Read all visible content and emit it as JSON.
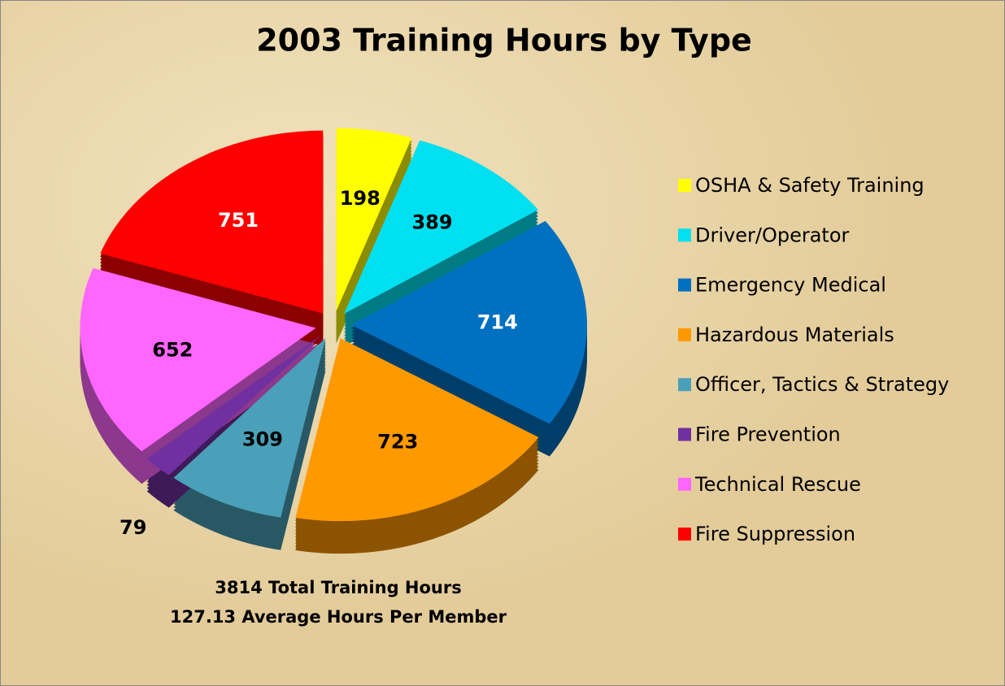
{
  "chart_data": {
    "type": "pie",
    "title": "2003 Training Hours by Type",
    "categories": [
      "OSHA & Safety Training",
      "Driver/Operator",
      "Emergency Medical",
      "Hazardous Materials",
      "Officer, Tactics & Strategy",
      "Fire Prevention",
      "Technical Rescue",
      "Fire Suppression"
    ],
    "values": [
      198,
      389,
      714,
      723,
      309,
      79,
      652,
      751
    ],
    "colors": [
      "#ffff00",
      "#00e0f0",
      "#0070c0",
      "#ff9900",
      "#4aa0b8",
      "#7030a0",
      "#ff66ff",
      "#ff0000"
    ],
    "annotations": [
      "3814 Total Training Hours",
      "127.13 Average Hours Per Member"
    ],
    "legend": "right"
  }
}
